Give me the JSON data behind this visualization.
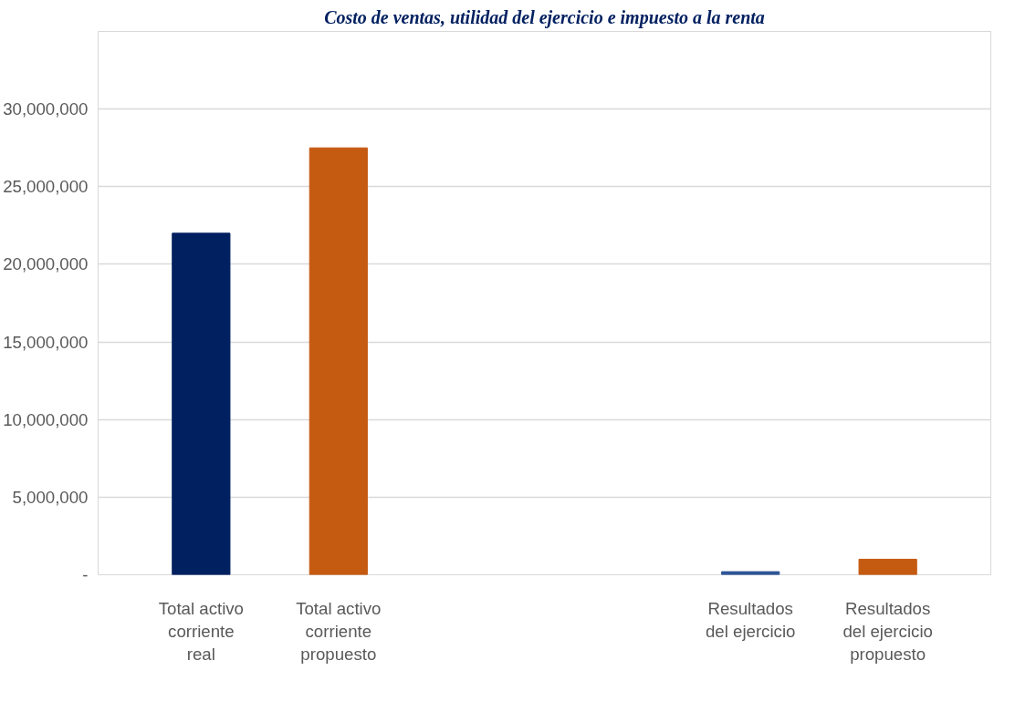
{
  "chart_data": {
    "type": "bar",
    "title": "Costo de ventas, utilidad del ejercicio e impuesto a la renta",
    "categories": [
      "Total activo corriente real",
      "Total activo corriente propuesto",
      null,
      null,
      "Resultados del ejercicio",
      "Resultados del ejercicio propuesto"
    ],
    "values": [
      22000000,
      27500000,
      null,
      null,
      200000,
      1000000
    ],
    "colors": [
      "#002060",
      "#c55a11",
      "#002060",
      "#c55a11",
      "#2f5597",
      "#c55a11"
    ],
    "ylim": [
      0,
      35000000
    ],
    "yticks": [
      {
        "value": 0,
        "label": "-"
      },
      {
        "value": 5000000,
        "label": "5,000,000"
      },
      {
        "value": 10000000,
        "label": "10,000,000"
      },
      {
        "value": 15000000,
        "label": "15,000,000"
      },
      {
        "value": 20000000,
        "label": "20,000,000"
      },
      {
        "value": 25000000,
        "label": "25,000,000"
      },
      {
        "value": 30000000,
        "label": "30,000,000"
      },
      {
        "value": 35000000,
        "label": null
      }
    ],
    "grid": "y"
  }
}
